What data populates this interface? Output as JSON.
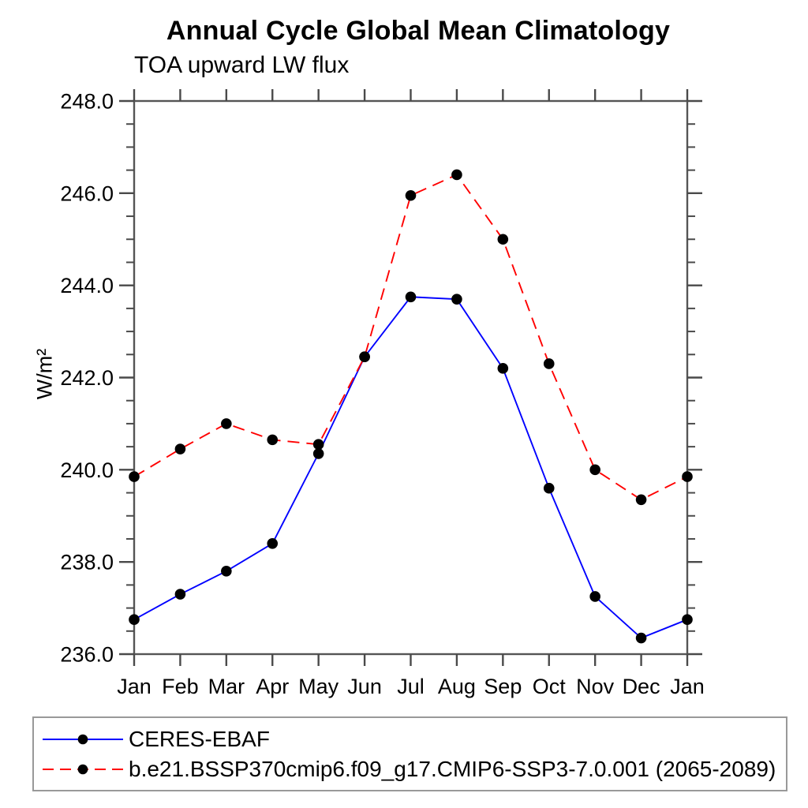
{
  "chart": {
    "title": "Annual Cycle Global Mean Climatology",
    "subtitle": "TOA upward LW flux",
    "ylabel": "W/m²"
  },
  "chart_data": {
    "type": "line",
    "title": "Annual Cycle Global Mean Climatology",
    "subtitle": "TOA upward LW flux",
    "xlabel": "",
    "ylabel": "W/m²",
    "categories": [
      "Jan",
      "Feb",
      "Mar",
      "Apr",
      "May",
      "Jun",
      "Jul",
      "Aug",
      "Sep",
      "Oct",
      "Nov",
      "Dec",
      "Jan"
    ],
    "ylim": [
      236.0,
      248.0
    ],
    "ytick_interval": 2.0,
    "yminor_interval": 0.5,
    "ytick_labels": [
      "236.0",
      "238.0",
      "240.0",
      "242.0",
      "244.0",
      "246.0",
      "248.0"
    ],
    "grid": false,
    "legend_position": "bottom-left",
    "marker_color": "#000000",
    "series": [
      {
        "name": "CERES-EBAF",
        "color": "#0000ff",
        "style": "solid",
        "marker": "circle",
        "values": [
          236.75,
          237.3,
          237.8,
          238.4,
          240.35,
          242.45,
          243.75,
          243.7,
          242.2,
          239.6,
          237.25,
          236.35,
          236.75
        ]
      },
      {
        "name": "b.e21.BSSP370cmip6.f09_g17.CMIP6-SSP3-7.0.001 (2065-2089)",
        "color": "#ff0000",
        "style": "dashed",
        "marker": "circle",
        "values": [
          239.85,
          240.45,
          241.0,
          240.65,
          240.55,
          242.45,
          245.95,
          246.4,
          245.0,
          242.3,
          240.0,
          239.35,
          239.85
        ]
      }
    ]
  }
}
